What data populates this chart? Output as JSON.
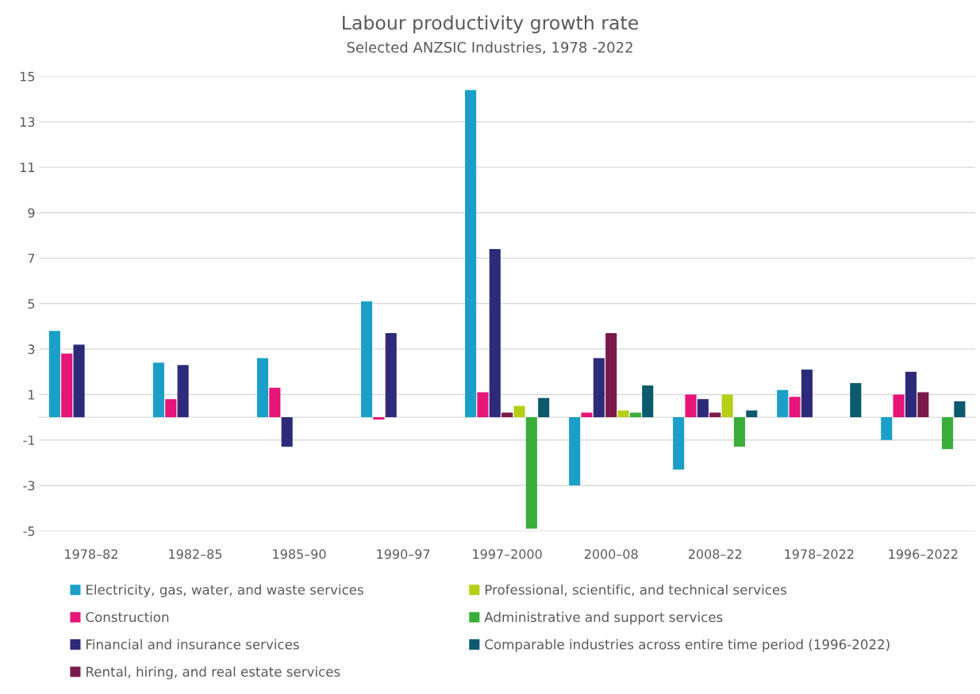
{
  "chart_data": {
    "type": "bar",
    "title": "Labour productivity growth rate",
    "subtitle": "Selected ANZSIC Industries, 1978 -2022",
    "categories": [
      "1978–82",
      "1982–85",
      "1985–90",
      "1990–97",
      "1997–2000",
      "2000–08",
      "2008–22",
      "1978–2022",
      "1996–2022"
    ],
    "series": [
      {
        "name": "Electricity, gas, water, and waste services",
        "color": "#1a9fc9",
        "values": [
          3.8,
          2.4,
          2.6,
          5.1,
          14.4,
          -3.0,
          -2.3,
          1.2,
          -1.0
        ]
      },
      {
        "name": "Construction",
        "color": "#e6157a",
        "values": [
          2.8,
          0.8,
          1.3,
          -0.1,
          1.1,
          0.2,
          1.0,
          0.9,
          1.0
        ]
      },
      {
        "name": "Financial and insurance services",
        "color": "#2e2a7a",
        "values": [
          3.2,
          2.3,
          -1.3,
          3.7,
          7.4,
          2.6,
          0.8,
          2.1,
          2.0
        ]
      },
      {
        "name": "Rental, hiring, and real estate services",
        "color": "#7a1a4a",
        "values": [
          null,
          null,
          null,
          null,
          0.2,
          3.7,
          0.2,
          null,
          1.1
        ]
      },
      {
        "name": "Professional, scientific, and technical services",
        "color": "#b5cf16",
        "values": [
          null,
          null,
          null,
          null,
          0.5,
          0.3,
          1.0,
          null,
          null
        ]
      },
      {
        "name": "Administrative and support services",
        "color": "#3aad3a",
        "values": [
          null,
          null,
          null,
          null,
          -4.9,
          0.2,
          -1.3,
          null,
          -1.4
        ]
      },
      {
        "name": "Comparable industries across entire time period (1996-2022)",
        "color": "#0b5a6e",
        "values": [
          null,
          null,
          null,
          null,
          0.85,
          1.4,
          0.3,
          1.5,
          0.7
        ]
      }
    ],
    "ylim": [
      -5,
      15
    ],
    "yticks": [
      -5,
      -3,
      -1,
      1,
      3,
      5,
      7,
      9,
      11,
      13,
      15
    ],
    "grid": "y",
    "legend": "bottom"
  }
}
